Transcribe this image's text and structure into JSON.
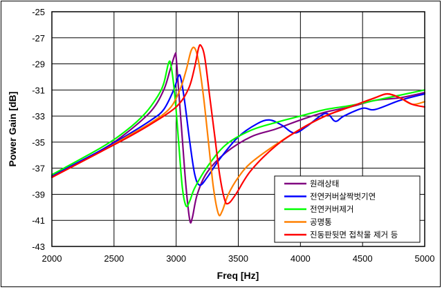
{
  "chart_data": {
    "type": "line",
    "xlabel": "Freq [Hz]",
    "ylabel": "Power Gain [dB]",
    "xlim": [
      2000,
      5000
    ],
    "ylim": [
      -43,
      -25
    ],
    "xticks": [
      "2000",
      "2500",
      "3000",
      "3500",
      "4000",
      "4500",
      "5000"
    ],
    "yticks": [
      "-25",
      "-27",
      "-29",
      "-31",
      "-33",
      "-35",
      "-37",
      "-39",
      "-41",
      "-43"
    ],
    "grid": true,
    "legend_position": "bottom-right",
    "series": [
      {
        "name": "원래상태",
        "color": "#800080",
        "points": [
          [
            2000,
            -37.7
          ],
          [
            2400,
            -35.6
          ],
          [
            2600,
            -34.3
          ],
          [
            2800,
            -32.6
          ],
          [
            2900,
            -31.0
          ],
          [
            2950,
            -29.5
          ],
          [
            2990,
            -28.3
          ],
          [
            3000,
            -28.5
          ],
          [
            3020,
            -31.0
          ],
          [
            3050,
            -34.8
          ],
          [
            3080,
            -38.5
          ],
          [
            3110,
            -41.0
          ],
          [
            3130,
            -40.8
          ],
          [
            3170,
            -39.0
          ],
          [
            3250,
            -37.3
          ],
          [
            3400,
            -35.8
          ],
          [
            3600,
            -34.6
          ],
          [
            3800,
            -34.0
          ],
          [
            4000,
            -33.3
          ],
          [
            4200,
            -32.7
          ],
          [
            4400,
            -32.3
          ],
          [
            4600,
            -31.8
          ],
          [
            4800,
            -31.6
          ],
          [
            5000,
            -31.2
          ]
        ]
      },
      {
        "name": "전연커버살짝벗기연",
        "color": "#0000ff",
        "points": [
          [
            2000,
            -37.6
          ],
          [
            2400,
            -35.6
          ],
          [
            2600,
            -34.5
          ],
          [
            2800,
            -33.3
          ],
          [
            2900,
            -32.5
          ],
          [
            2980,
            -31.0
          ],
          [
            3020,
            -29.9
          ],
          [
            3040,
            -30.2
          ],
          [
            3070,
            -32.0
          ],
          [
            3110,
            -35.0
          ],
          [
            3150,
            -37.5
          ],
          [
            3190,
            -38.3
          ],
          [
            3250,
            -37.7
          ],
          [
            3350,
            -36.3
          ],
          [
            3500,
            -34.6
          ],
          [
            3650,
            -33.6
          ],
          [
            3750,
            -33.3
          ],
          [
            3850,
            -33.7
          ],
          [
            3950,
            -34.3
          ],
          [
            4050,
            -33.8
          ],
          [
            4200,
            -32.8
          ],
          [
            4280,
            -33.4
          ],
          [
            4350,
            -33.0
          ],
          [
            4500,
            -32.4
          ],
          [
            4600,
            -32.5
          ],
          [
            4800,
            -31.8
          ],
          [
            5000,
            -31.3
          ]
        ]
      },
      {
        "name": "전연커버제거",
        "color": "#00ff00",
        "points": [
          [
            2000,
            -37.5
          ],
          [
            2400,
            -35.4
          ],
          [
            2600,
            -34.1
          ],
          [
            2750,
            -32.8
          ],
          [
            2850,
            -31.5
          ],
          [
            2900,
            -30.5
          ],
          [
            2940,
            -28.9
          ],
          [
            2960,
            -29.2
          ],
          [
            2990,
            -31.5
          ],
          [
            3020,
            -35.0
          ],
          [
            3050,
            -38.5
          ],
          [
            3080,
            -39.9
          ],
          [
            3110,
            -39.5
          ],
          [
            3150,
            -38.5
          ],
          [
            3250,
            -36.9
          ],
          [
            3400,
            -35.2
          ],
          [
            3600,
            -34.1
          ],
          [
            3800,
            -33.5
          ],
          [
            4000,
            -33.0
          ],
          [
            4200,
            -32.5
          ],
          [
            4400,
            -32.2
          ],
          [
            4600,
            -31.8
          ],
          [
            4800,
            -31.4
          ],
          [
            5000,
            -31.0
          ]
        ]
      },
      {
        "name": "공명통",
        "color": "#ff8000",
        "points": [
          [
            2000,
            -37.7
          ],
          [
            2400,
            -35.7
          ],
          [
            2600,
            -34.6
          ],
          [
            2800,
            -33.5
          ],
          [
            2950,
            -32.4
          ],
          [
            3030,
            -31.0
          ],
          [
            3080,
            -29.5
          ],
          [
            3120,
            -28.0
          ],
          [
            3150,
            -27.8
          ],
          [
            3180,
            -28.8
          ],
          [
            3220,
            -31.5
          ],
          [
            3260,
            -35.0
          ],
          [
            3300,
            -38.5
          ],
          [
            3340,
            -40.5
          ],
          [
            3370,
            -40.3
          ],
          [
            3420,
            -39.0
          ],
          [
            3500,
            -37.7
          ],
          [
            3600,
            -36.6
          ],
          [
            3800,
            -35.2
          ],
          [
            4000,
            -34.0
          ],
          [
            4200,
            -33.0
          ],
          [
            4400,
            -32.3
          ],
          [
            4600,
            -31.6
          ],
          [
            4700,
            -31.3
          ],
          [
            4800,
            -31.6
          ],
          [
            4900,
            -32.1
          ],
          [
            5000,
            -31.9
          ]
        ]
      },
      {
        "name": "진동판뒷면 접착물 제거 등",
        "color": "#ff0000",
        "points": [
          [
            2000,
            -37.7
          ],
          [
            2400,
            -35.7
          ],
          [
            2600,
            -34.7
          ],
          [
            2800,
            -33.6
          ],
          [
            3000,
            -32.3
          ],
          [
            3100,
            -30.9
          ],
          [
            3150,
            -29.2
          ],
          [
            3180,
            -27.8
          ],
          [
            3200,
            -27.6
          ],
          [
            3230,
            -28.5
          ],
          [
            3270,
            -31.5
          ],
          [
            3310,
            -34.5
          ],
          [
            3350,
            -37.5
          ],
          [
            3390,
            -39.4
          ],
          [
            3420,
            -39.7
          ],
          [
            3480,
            -39.0
          ],
          [
            3600,
            -37.2
          ],
          [
            3800,
            -35.3
          ],
          [
            4000,
            -34.0
          ],
          [
            4200,
            -33.0
          ],
          [
            4400,
            -32.3
          ],
          [
            4600,
            -31.6
          ],
          [
            4700,
            -31.3
          ],
          [
            4800,
            -31.6
          ],
          [
            4900,
            -32.1
          ],
          [
            5000,
            -32.3
          ]
        ]
      }
    ]
  }
}
